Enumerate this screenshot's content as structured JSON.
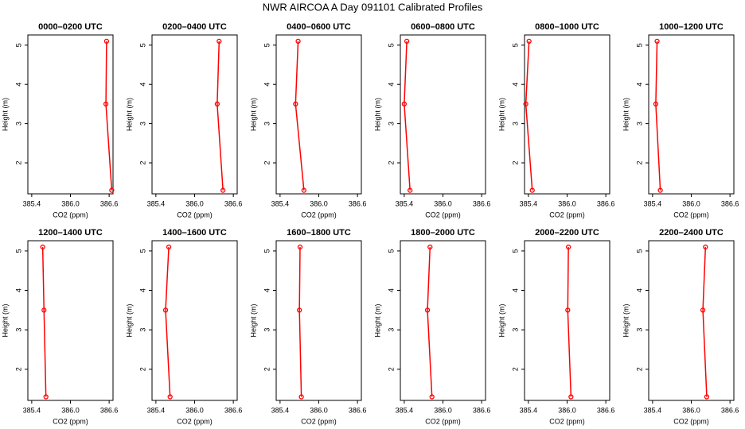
{
  "title": "NWR AIRCOA A  Day 091101  Calibrated Profiles",
  "chart_data": [
    {
      "type": "line",
      "title": "0000–0200 UTC",
      "x_label": "CO2 (ppm)",
      "y_label": "Height (m)",
      "color": "#ff0000",
      "x": [
        386.64,
        386.55,
        386.56
      ],
      "values": [
        1.3,
        3.5,
        5.1
      ],
      "xlim": [
        385.34,
        386.66
      ],
      "xticks": [
        385.4,
        {
          "value": 386,
          "label": "386.0"
        },
        386.6
      ],
      "ylim": [
        1.21,
        5.26
      ],
      "yticks": [
        2,
        3,
        4,
        5
      ]
    },
    {
      "type": "line",
      "title": "0200–0400 UTC",
      "x_label": "CO2 (ppm)",
      "y_label": "Height (m)",
      "color": "#ff0000",
      "x": [
        386.44,
        386.35,
        386.38
      ],
      "values": [
        1.3,
        3.5,
        5.1
      ],
      "xlim": [
        385.34,
        386.66
      ],
      "xticks": [
        385.4,
        {
          "value": 386,
          "label": "386.0"
        },
        386.6
      ],
      "ylim": [
        1.21,
        5.26
      ],
      "yticks": [
        2,
        3,
        4,
        5
      ]
    },
    {
      "type": "line",
      "title": "0400–0600 UTC",
      "x_label": "CO2 (ppm)",
      "y_label": "Height (m)",
      "color": "#ff0000",
      "x": [
        385.77,
        385.64,
        385.68
      ],
      "values": [
        1.3,
        3.5,
        5.1
      ],
      "xlim": [
        385.34,
        386.66
      ],
      "xticks": [
        385.4,
        {
          "value": 386,
          "label": "386.0"
        },
        386.6
      ],
      "ylim": [
        1.21,
        5.26
      ],
      "yticks": [
        2,
        3,
        4,
        5
      ]
    },
    {
      "type": "line",
      "title": "0600–0800 UTC",
      "x_label": "CO2 (ppm)",
      "y_label": "Height (m)",
      "color": "#ff0000",
      "x": [
        385.49,
        385.4,
        385.44
      ],
      "values": [
        1.3,
        3.5,
        5.1
      ],
      "xlim": [
        385.34,
        386.66
      ],
      "xticks": [
        385.4,
        {
          "value": 386,
          "label": "386.0"
        },
        386.6
      ],
      "ylim": [
        1.21,
        5.26
      ],
      "yticks": [
        2,
        3,
        4,
        5
      ]
    },
    {
      "type": "line",
      "title": "0800–1000 UTC",
      "x_label": "CO2 (ppm)",
      "y_label": "Height (m)",
      "color": "#ff0000",
      "x": [
        385.46,
        385.36,
        385.41
      ],
      "values": [
        1.3,
        3.5,
        5.1
      ],
      "xlim": [
        385.34,
        386.66
      ],
      "xticks": [
        385.4,
        {
          "value": 386,
          "label": "386.0"
        },
        386.6
      ],
      "ylim": [
        1.21,
        5.26
      ],
      "yticks": [
        2,
        3,
        4,
        5
      ]
    },
    {
      "type": "line",
      "title": "1000–1200 UTC",
      "x_label": "CO2 (ppm)",
      "y_label": "Height (m)",
      "color": "#ff0000",
      "x": [
        385.52,
        385.45,
        385.47
      ],
      "values": [
        1.3,
        3.5,
        5.1
      ],
      "xlim": [
        385.34,
        386.66
      ],
      "xticks": [
        385.4,
        {
          "value": 386,
          "label": "386.0"
        },
        386.6
      ],
      "ylim": [
        1.21,
        5.26
      ],
      "yticks": [
        2,
        3,
        4,
        5
      ]
    },
    {
      "type": "line",
      "title": "1200–1400 UTC",
      "x_label": "CO2 (ppm)",
      "y_label": "Height (m)",
      "color": "#ff0000",
      "x": [
        385.62,
        385.59,
        385.57
      ],
      "values": [
        1.3,
        3.5,
        5.1
      ],
      "xlim": [
        385.34,
        386.66
      ],
      "xticks": [
        385.4,
        {
          "value": 386,
          "label": "386.0"
        },
        386.6
      ],
      "ylim": [
        1.21,
        5.26
      ],
      "yticks": [
        2,
        3,
        4,
        5
      ]
    },
    {
      "type": "line",
      "title": "1400–1600 UTC",
      "x_label": "CO2 (ppm)",
      "y_label": "Height (m)",
      "color": "#ff0000",
      "x": [
        385.62,
        385.55,
        385.6
      ],
      "values": [
        1.3,
        3.5,
        5.1
      ],
      "xlim": [
        385.34,
        386.66
      ],
      "xticks": [
        385.4,
        {
          "value": 386,
          "label": "386.0"
        },
        386.6
      ],
      "ylim": [
        1.21,
        5.26
      ],
      "yticks": [
        2,
        3,
        4,
        5
      ]
    },
    {
      "type": "line",
      "title": "1600–1800 UTC",
      "x_label": "CO2 (ppm)",
      "y_label": "Height (m)",
      "color": "#ff0000",
      "x": [
        385.73,
        385.7,
        385.71
      ],
      "values": [
        1.3,
        3.5,
        5.1
      ],
      "xlim": [
        385.34,
        386.66
      ],
      "xticks": [
        385.4,
        {
          "value": 386,
          "label": "386.0"
        },
        386.6
      ],
      "ylim": [
        1.21,
        5.26
      ],
      "yticks": [
        2,
        3,
        4,
        5
      ]
    },
    {
      "type": "line",
      "title": "1800–2000 UTC",
      "x_label": "CO2 (ppm)",
      "y_label": "Height (m)",
      "color": "#ff0000",
      "x": [
        385.83,
        385.76,
        385.8
      ],
      "values": [
        1.3,
        3.5,
        5.1
      ],
      "xlim": [
        385.34,
        386.66
      ],
      "xticks": [
        385.4,
        {
          "value": 386,
          "label": "386.0"
        },
        386.6
      ],
      "ylim": [
        1.21,
        5.26
      ],
      "yticks": [
        2,
        3,
        4,
        5
      ]
    },
    {
      "type": "line",
      "title": "2000–2200 UTC",
      "x_label": "CO2 (ppm)",
      "y_label": "Height (m)",
      "color": "#ff0000",
      "x": [
        386.06,
        386.01,
        386.02
      ],
      "values": [
        1.3,
        3.5,
        5.1
      ],
      "xlim": [
        385.34,
        386.66
      ],
      "xticks": [
        385.4,
        {
          "value": 386,
          "label": "386.0"
        },
        386.6
      ],
      "ylim": [
        1.21,
        5.26
      ],
      "yticks": [
        2,
        3,
        4,
        5
      ]
    },
    {
      "type": "line",
      "title": "2200–2400 UTC",
      "x_label": "CO2 (ppm)",
      "y_label": "Height (m)",
      "color": "#ff0000",
      "x": [
        386.24,
        386.18,
        386.22
      ],
      "values": [
        1.3,
        3.5,
        5.1
      ],
      "xlim": [
        385.34,
        386.66
      ],
      "xticks": [
        385.4,
        {
          "value": 386,
          "label": "386.0"
        },
        386.6
      ],
      "ylim": [
        1.21,
        5.26
      ],
      "yticks": [
        2,
        3,
        4,
        5
      ]
    }
  ]
}
